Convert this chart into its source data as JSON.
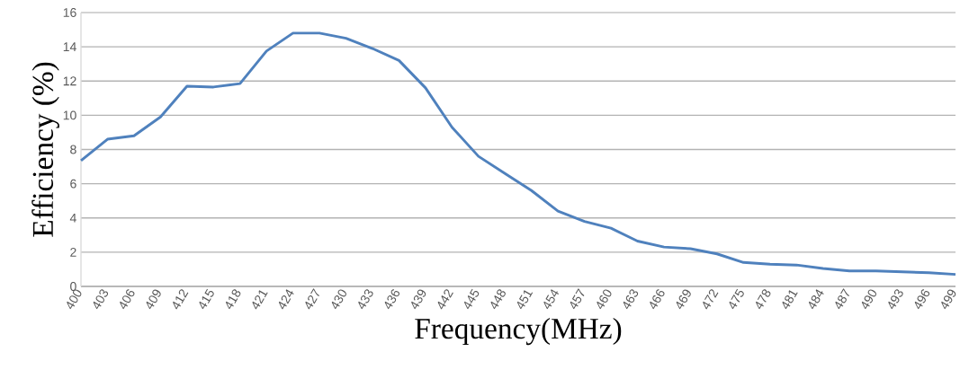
{
  "chart_data": {
    "type": "line",
    "xlabel": "Frequency(MHz)",
    "ylabel": "Efficiency (%)",
    "categories": [
      "400",
      "403",
      "406",
      "409",
      "412",
      "415",
      "418",
      "421",
      "424",
      "427",
      "430",
      "433",
      "436",
      "439",
      "442",
      "445",
      "448",
      "451",
      "454",
      "457",
      "460",
      "463",
      "466",
      "469",
      "472",
      "475",
      "478",
      "481",
      "484",
      "487",
      "490",
      "493",
      "496",
      "499"
    ],
    "series": [
      {
        "color": "#4f81bd",
        "values": [
          7.35,
          8.6,
          8.8,
          9.9,
          11.7,
          11.65,
          11.85,
          13.75,
          14.8,
          14.8,
          14.5,
          13.9,
          13.2,
          11.6,
          9.3,
          7.6,
          6.6,
          5.6,
          4.4,
          3.8,
          3.4,
          2.65,
          2.3,
          2.2,
          1.9,
          1.4,
          1.3,
          1.25,
          1.05,
          0.9,
          0.9,
          0.85,
          0.8,
          0.7
        ]
      }
    ],
    "ylim": [
      0,
      16
    ],
    "yticks": [
      0,
      2,
      4,
      6,
      8,
      10,
      12,
      14,
      16
    ],
    "grid": "y"
  }
}
